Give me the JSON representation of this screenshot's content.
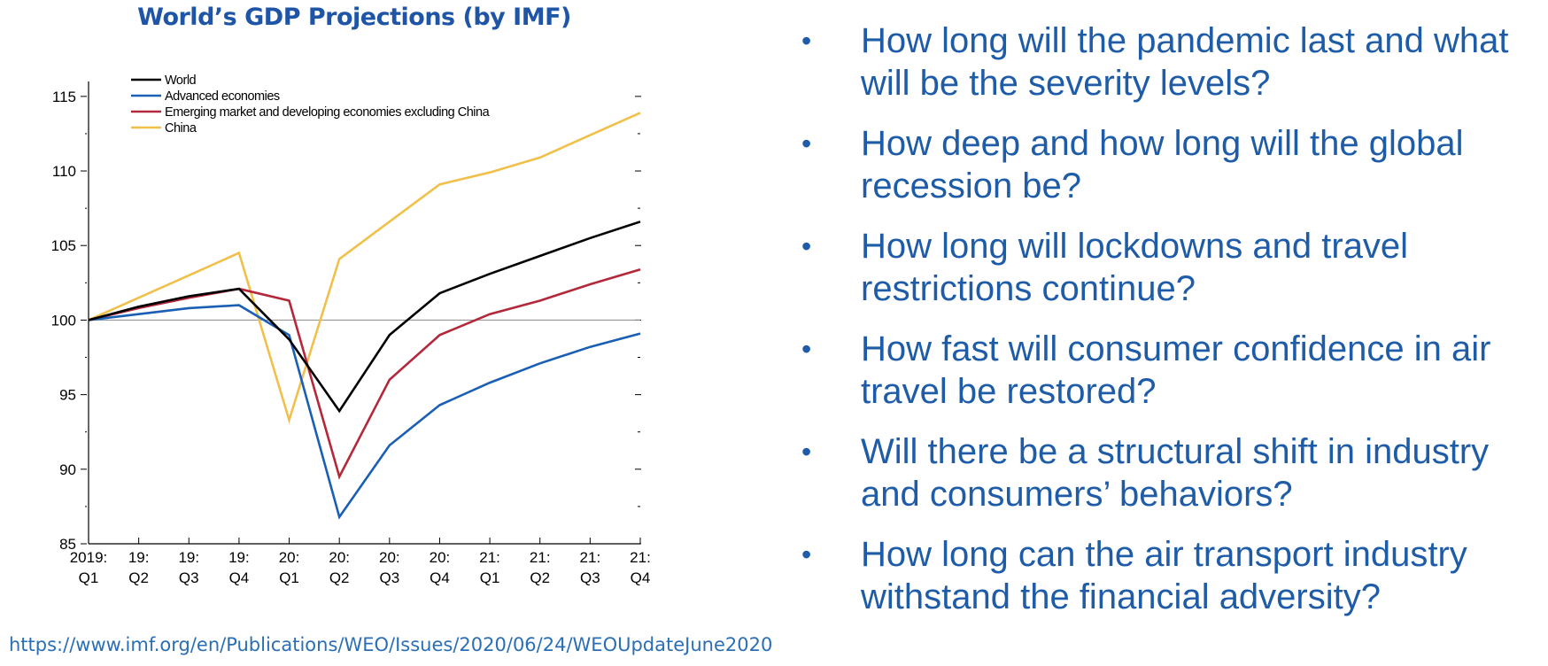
{
  "chart_data": {
    "type": "line",
    "title": "World’s GDP Projections (by IMF)",
    "categories": [
      [
        "2019:",
        "Q1"
      ],
      [
        "19:",
        "Q2"
      ],
      [
        "19:",
        "Q3"
      ],
      [
        "19:",
        "Q4"
      ],
      [
        "20:",
        "Q1"
      ],
      [
        "20:",
        "Q2"
      ],
      [
        "20:",
        "Q3"
      ],
      [
        "20:",
        "Q4"
      ],
      [
        "21:",
        "Q1"
      ],
      [
        "21:",
        "Q2"
      ],
      [
        "21:",
        "Q3"
      ],
      [
        "21:",
        "Q4"
      ]
    ],
    "ylim": [
      85,
      116
    ],
    "yticks": [
      85,
      90,
      95,
      100,
      105,
      110,
      115
    ],
    "reference_line": 100,
    "legend_position": "top-left",
    "series": [
      {
        "name": "World",
        "color": "#000000",
        "values": [
          100,
          100.9,
          101.6,
          102.1,
          98.7,
          93.9,
          99.0,
          101.8,
          103.1,
          104.3,
          105.5,
          106.6
        ]
      },
      {
        "name": "Advanced economies",
        "color": "#1a5fb4",
        "values": [
          100,
          100.4,
          100.8,
          101.0,
          99.0,
          86.8,
          91.6,
          94.3,
          95.8,
          97.1,
          98.2,
          99.1
        ]
      },
      {
        "name": "Emerging market and developing economies excluding China",
        "color": "#b3283a",
        "values": [
          100,
          100.8,
          101.5,
          102.1,
          101.3,
          89.5,
          96.0,
          99.0,
          100.4,
          101.3,
          102.4,
          103.4
        ]
      },
      {
        "name": "China",
        "color": "#f0c04a",
        "values": [
          100,
          101.5,
          103.0,
          104.5,
          93.3,
          104.1,
          106.6,
          109.1,
          109.9,
          110.9,
          112.4,
          113.9
        ]
      }
    ]
  },
  "bullets": [
    "How long will the pandemic last and what will be the severity levels?",
    "How deep and how long will the global recession be?",
    "How long will lockdowns and travel restrictions continue?",
    "How fast will consumer confidence in air travel be restored?",
    "Will there be a structural shift in industry and consumers’ behaviors?",
    "How long can the air transport industry withstand the financial adversity?"
  ],
  "bullet_symbol": "•",
  "source_url": "https://www.imf.org/en/Publications/WEO/Issues/2020/06/24/WEOUpdateJune2020"
}
